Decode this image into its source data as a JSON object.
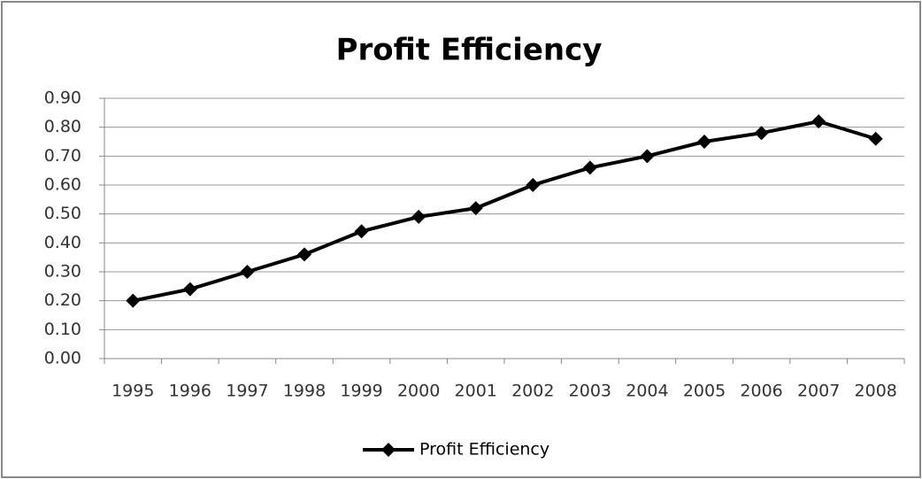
{
  "chart_data": {
    "type": "line",
    "title": "Profit Efficiency",
    "categories": [
      "1995",
      "1996",
      "1997",
      "1998",
      "1999",
      "2000",
      "2001",
      "2002",
      "2003",
      "2004",
      "2005",
      "2006",
      "2007",
      "2008"
    ],
    "series": [
      {
        "name": "Profit Efficiency",
        "color": "#000000",
        "values": [
          0.2,
          0.24,
          0.3,
          0.36,
          0.44,
          0.49,
          0.52,
          0.6,
          0.66,
          0.7,
          0.75,
          0.78,
          0.82,
          0.76
        ]
      }
    ],
    "ylim": [
      0,
      0.9
    ],
    "yticks": [
      {
        "value": 0,
        "label": "0.00"
      },
      {
        "value": 0.1,
        "label": "0.10"
      },
      {
        "value": 0.2,
        "label": "0.20"
      },
      {
        "value": 0.3,
        "label": "0.30"
      },
      {
        "value": 0.4,
        "label": "0.40"
      },
      {
        "value": 0.5,
        "label": "0.50"
      },
      {
        "value": 0.6,
        "label": "0.60"
      },
      {
        "value": 0.7,
        "label": "0.70"
      },
      {
        "value": 0.8,
        "label": "0.80"
      },
      {
        "value": 0.9,
        "label": "0.90"
      }
    ],
    "grid": true,
    "legend": "bottom"
  }
}
